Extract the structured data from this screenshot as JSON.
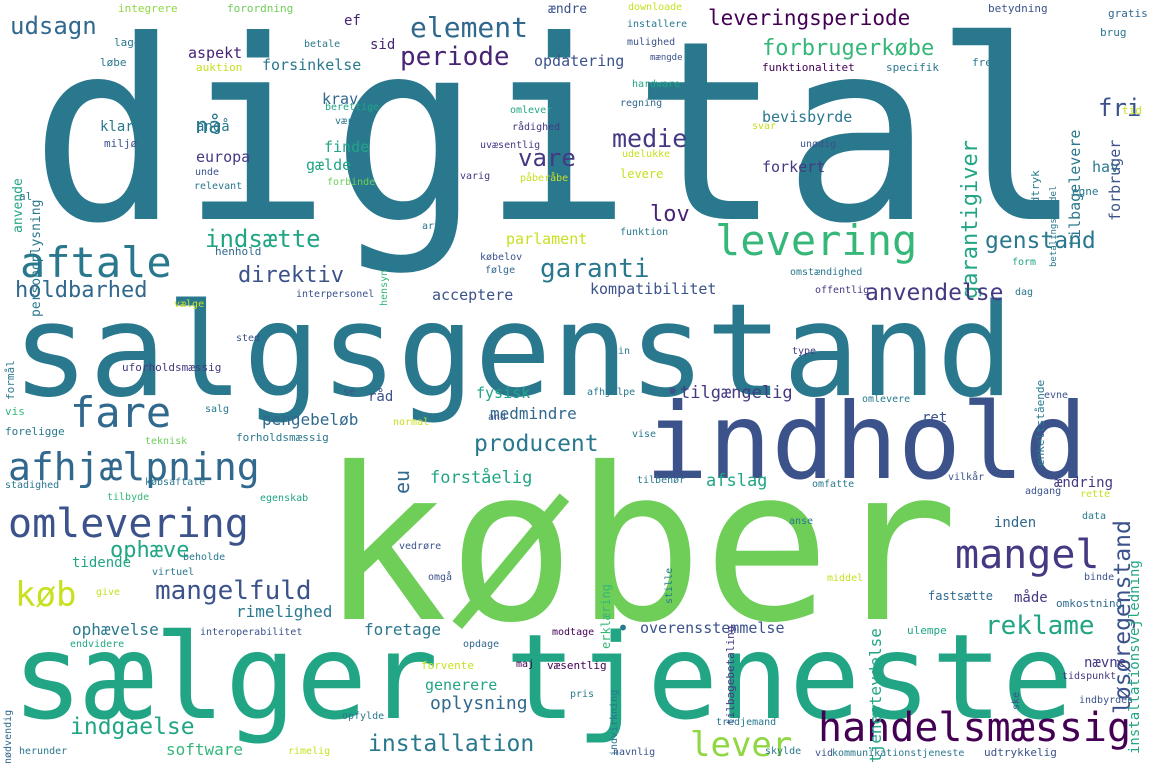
{
  "words": [
    "digital",
    "salgsgenstand",
    "køber",
    "sælger",
    "tjeneste",
    "indhold",
    "levering",
    "aftale",
    "fare",
    "afhjælpning",
    "omlevering",
    "mangel",
    "handelsmæssig",
    "mangelfuld",
    "køb",
    "udsagn",
    "nå",
    "element",
    "periode",
    "leveringsperiode",
    "forbrugerkøbe",
    "fri",
    "medie",
    "vare",
    "lov",
    "garanti",
    "garantigiver",
    "genstand",
    "indsætte",
    "direktiv",
    "holdbarhed",
    "anvendelse",
    "producent",
    "eu",
    "løsøregenstand",
    "installation",
    "lever",
    "indgåelse",
    "reklame",
    "ophæve",
    "rimelighed",
    "ophævelse",
    "overensstemmelse",
    "foretage",
    "oplysning",
    "generere",
    "software",
    "afslag",
    "forståelig",
    "fysisk",
    "pengebeløb",
    "medmindre",
    "tilgængelig",
    "acceptere",
    "kompatibilitet",
    "parlament",
    "opdatering",
    "aspekt",
    "forsinkelse",
    "krav",
    "klar",
    "angå",
    "europa",
    "finde",
    "gælde",
    "bevisbyrde",
    "forkert",
    "hav",
    "forbruger",
    "tilbagelevere",
    "tjenesteydelse",
    "ændring",
    "inden",
    "installationsvejledning",
    "nævne",
    "omkostning",
    "måde",
    "fastsætte",
    "ulempe",
    "tidende",
    "ophævelse_small",
    "ret",
    "råd",
    "sid",
    "ef",
    "anvende",
    "personoplysning",
    "integrere",
    "forordning",
    "downloade",
    "ændre",
    "betydning",
    "gratis",
    "brug",
    "installere",
    "mulighed",
    "mængde",
    "lager",
    "betale",
    "løbe",
    "auktion",
    "funktionalitet",
    "specifik",
    "fremgå",
    "hardware",
    "omlever",
    "regning",
    "berettige",
    "værdi",
    "rådighed",
    "uvæsentlig",
    "miljø",
    "unde",
    "relevant",
    "forbinde",
    "varig",
    "påberåbe",
    "udelukke",
    "unødig",
    "levere",
    "svar",
    "tid",
    "udtryk",
    "betalingsmiddel",
    "egne",
    "al",
    "hensyn",
    "art",
    "funktion",
    "henhold",
    "købelov",
    "følge",
    "omstændighed",
    "form",
    "offentlig",
    "dag",
    "vælge",
    "interpersonel",
    "sted",
    "sin",
    "type",
    "formål",
    "uforholdsmæssig",
    "se",
    "afhjælpe",
    "enkeltstående",
    "evne",
    "vis",
    "salg",
    "normal",
    "and",
    "omlevere",
    "foreligge",
    "teknisk",
    "forholdsmæssig",
    "vise",
    "stadighed",
    "købsaftale",
    "tilbehør",
    "omfatte",
    "vilkår",
    "adgang",
    "rette",
    "tilbyde",
    "egenskab",
    "anse",
    "data",
    "erklæring",
    "vedrøre",
    "beholde",
    "give",
    "virtuel",
    "omgå",
    "stille",
    "middel",
    "tilbagebetaling",
    "binde",
    "endvidere",
    "interoperabilitet",
    "modtage",
    "opdage",
    "forvente",
    "maj",
    "væsentlig",
    "nødvendig",
    "indvirkning",
    "tidspunkt",
    "ske",
    "pris",
    "indbyrdes",
    "opfylde",
    "tredjemand",
    "herunder",
    "rimelig",
    "navnlig",
    "skylde",
    "vid",
    "kommunikationstjeneste",
    "udtrykkelig",
    "dot1",
    "dot2"
  ],
  "labels": {
    "digital": "digital",
    "salgsgenstand": "salgsgenstand",
    "køber": "køber",
    "sælger": "sælger",
    "tjeneste": "tjeneste",
    "indhold": "indhold",
    "levering": "levering",
    "aftale": "aftale",
    "fare": "fare",
    "afhjælpning": "afhjælpning",
    "omlevering": "omlevering",
    "mangel": "mangel",
    "handelsmæssig": "handelsmæssig",
    "mangelfuld": "mangelfuld",
    "køb": "køb",
    "udsagn": "udsagn",
    "nå": "nå",
    "element": "element",
    "periode": "periode",
    "leveringsperiode": "leveringsperiode",
    "forbrugerkøbe": "forbrugerkøbe",
    "fri": "fri",
    "medie": "medie",
    "vare": "vare",
    "lov": "lov",
    "garanti": "garanti",
    "garantigiver": "garantigiver",
    "genstand": "genstand",
    "indsætte": "indsætte",
    "direktiv": "direktiv",
    "holdbarhed": "holdbarhed",
    "anvendelse": "anvendelse",
    "producent": "producent",
    "eu": "eu",
    "løsøregenstand": "løsøregenstand",
    "installation": "installation",
    "lever": "lever",
    "indgåelse": "indgåelse",
    "reklame": "reklame",
    "ophæve": "ophæve",
    "rimelighed": "rimelighed",
    "ophævelse": "ophævelse",
    "overensstemmelse": "overensstemmelse",
    "foretage": "foretage",
    "oplysning": "oplysning",
    "generere": "generere",
    "software": "software",
    "afslag": "afslag",
    "forståelig": "forståelig",
    "fysisk": "fysisk",
    "pengebeløb": "pengebeløb",
    "medmindre": "medmindre",
    "tilgængelig": "tilgængelig",
    "acceptere": "acceptere",
    "kompatibilitet": "kompatibilitet",
    "parlament": "parlament",
    "opdatering": "opdatering",
    "aspekt": "aspekt",
    "forsinkelse": "forsinkelse",
    "krav": "krav",
    "klar": "klar",
    "angå": "angå",
    "europa": "europa",
    "finde": "finde",
    "gælde": "gælde",
    "bevisbyrde": "bevisbyrde",
    "forkert": "forkert",
    "hav": "hav",
    "forbruger": "forbruger",
    "tilbagelevere": "tilbagelevere",
    "tjenesteydelse": "tjenesteydelse",
    "ændring": "ændring",
    "inden": "inden",
    "installationsvejledning": "installationsvejledning",
    "nævne": "nævne",
    "omkostning": "omkostning",
    "måde": "måde",
    "fastsætte": "fastsætte",
    "ulempe": "ulempe",
    "tidende": "tidende",
    "ophævelse_small": "ophævelse",
    "ret": "ret",
    "råd": "råd",
    "sid": "sid",
    "ef": "ef",
    "anvende": "anvende",
    "personoplysning": "personoplysning",
    "integrere": "integrere",
    "forordning": "forordning",
    "downloade": "downloade",
    "ændre": "ændre",
    "betydning": "betydning",
    "gratis": "gratis",
    "brug": "brug",
    "installere": "installere",
    "mulighed": "mulighed",
    "mængde": "mængde",
    "lager": "lager",
    "betale": "betale",
    "løbe": "løbe",
    "auktion": "auktion",
    "funktionalitet": "funktionalitet",
    "specifik": "specifik",
    "fremgå": "fremgå",
    "hardware": "hardware",
    "omlever": "omlever",
    "regning": "regning",
    "berettige": "berettige",
    "værdi": "værdi",
    "rådighed": "rådighed",
    "uvæsentlig": "uvæsentlig",
    "miljø": "miljø",
    "unde": "unde",
    "relevant": "relevant",
    "forbinde": "forbinde",
    "varig": "varig",
    "påberåbe": "påberåbe",
    "udelukke": "udelukke",
    "unødig": "unødig",
    "levere": "levere",
    "svar": "svar",
    "tid": "tid",
    "udtryk": "udtryk",
    "betalingsmiddel": "betalingsmiddel",
    "egne": "egne",
    "al": "al",
    "hensyn": "hensyn",
    "art": "art",
    "funktion": "funktion",
    "henhold": "henhold",
    "købelov": "købelov",
    "følge": "følge",
    "omstændighed": "omstændighed",
    "form": "form",
    "offentlig": "offentlig",
    "dag": "dag",
    "vælge": "vælge",
    "interpersonel": "interpersonel",
    "sted": "sted",
    "sin": "sin",
    "type": "type",
    "formål": "formål",
    "uforholdsmæssig": "uforholdsmæssig",
    "se": "se",
    "afhjælpe": "afhjælpe",
    "enkeltstående": "enkeltstående",
    "evne": "evne",
    "vis": "vis",
    "salg": "salg",
    "normal": "normal",
    "and": "and",
    "omlevere": "omlevere",
    "foreligge": "foreligge",
    "teknisk": "teknisk",
    "forholdsmæssig": "forholdsmæssig",
    "vise": "vise",
    "stadighed": "stadighed",
    "købsaftale": "købsaftale",
    "tilbehør": "tilbehør",
    "omfatte": "omfatte",
    "vilkår": "vilkår",
    "adgang": "adgang",
    "rette": "rette",
    "tilbyde": "tilbyde",
    "egenskab": "egenskab",
    "anse": "anse",
    "data": "data",
    "erklæring": "erklæring",
    "vedrøre": "vedrøre",
    "beholde": "beholde",
    "give": "give",
    "virtuel": "virtuel",
    "omgå": "omgå",
    "stille": "stille",
    "middel": "middel",
    "tilbagebetaling": "tilbagebetaling",
    "binde": "binde",
    "endvidere": "endvidere",
    "interoperabilitet": "interoperabilitet",
    "modtage": "modtage",
    "opdage": "opdage",
    "forvente": "forvente",
    "maj": "maj",
    "væsentlig": "væsentlig",
    "nødvendig": "nødvendig",
    "indvirkning": "indvirkning",
    "tidspunkt": "tidspunkt",
    "ske": "ske",
    "pris": "pris",
    "indbyrdes": "indbyrdes",
    "opfylde": "opfylde",
    "tredjemand": "tredjemand",
    "herunder": "herunder",
    "rimelig": "rimelig",
    "navnlig": "navnlig",
    "skylde": "skylde",
    "vid": "vid",
    "kommunikationstjeneste": "kommunikationstjeneste",
    "udtrykkelig": "udtrykkelig",
    "dot1": "•",
    "dot2": "•"
  },
  "palette": {
    "teal": "#22898c",
    "teal_dark": "#2a788e",
    "blue": "#31688e",
    "navy": "#3b528b",
    "indigo": "#443983",
    "purple": "#482475",
    "deep_purple": "#440154",
    "green_teal": "#21a585",
    "green": "#35b779",
    "lime": "#6ece58",
    "light_lime": "#90d743",
    "yellow": "#fde725",
    "yellow_green": "#c8e020"
  }
}
